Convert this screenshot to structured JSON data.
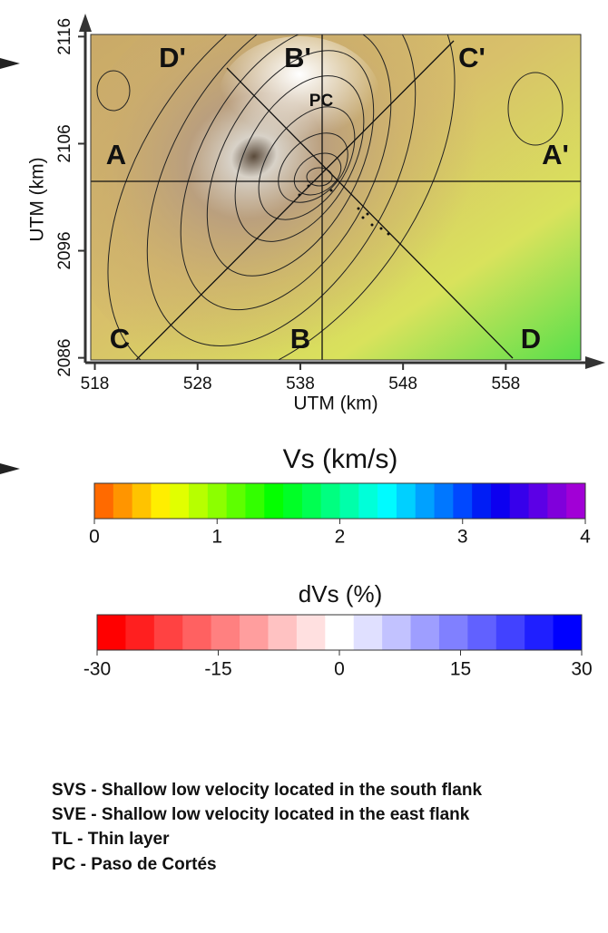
{
  "map": {
    "xlabel": "UTM (km)",
    "ylabel": "UTM (km)",
    "xlim": [
      517.6,
      565.3
    ],
    "ylim": [
      2085.8,
      2116.2
    ],
    "xticks": [
      518,
      528,
      538,
      548,
      558
    ],
    "yticks": [
      2086,
      2096,
      2106,
      2116
    ],
    "section_labels": {
      "A": "A",
      "A2": "A'",
      "B": "B",
      "B2": "B'",
      "C": "C",
      "C2": "C'",
      "D": "D",
      "D2": "D'",
      "PC": "PC"
    }
  },
  "vs_colorbar": {
    "title": "Vs (km/s)",
    "lim": [
      0,
      4
    ],
    "ticks": [
      0,
      1,
      2,
      3,
      4
    ]
  },
  "dvs_colorbar": {
    "title": "dVs (%)",
    "lim": [
      -30,
      30
    ],
    "ticks": [
      -30,
      -15,
      0,
      15,
      30
    ]
  },
  "legend": [
    "SVS - Shallow low velocity located in the south flank",
    "SVE - Shallow low velocity located in the east flank",
    "TL - Thin layer",
    "PC - Paso de Cortés"
  ]
}
